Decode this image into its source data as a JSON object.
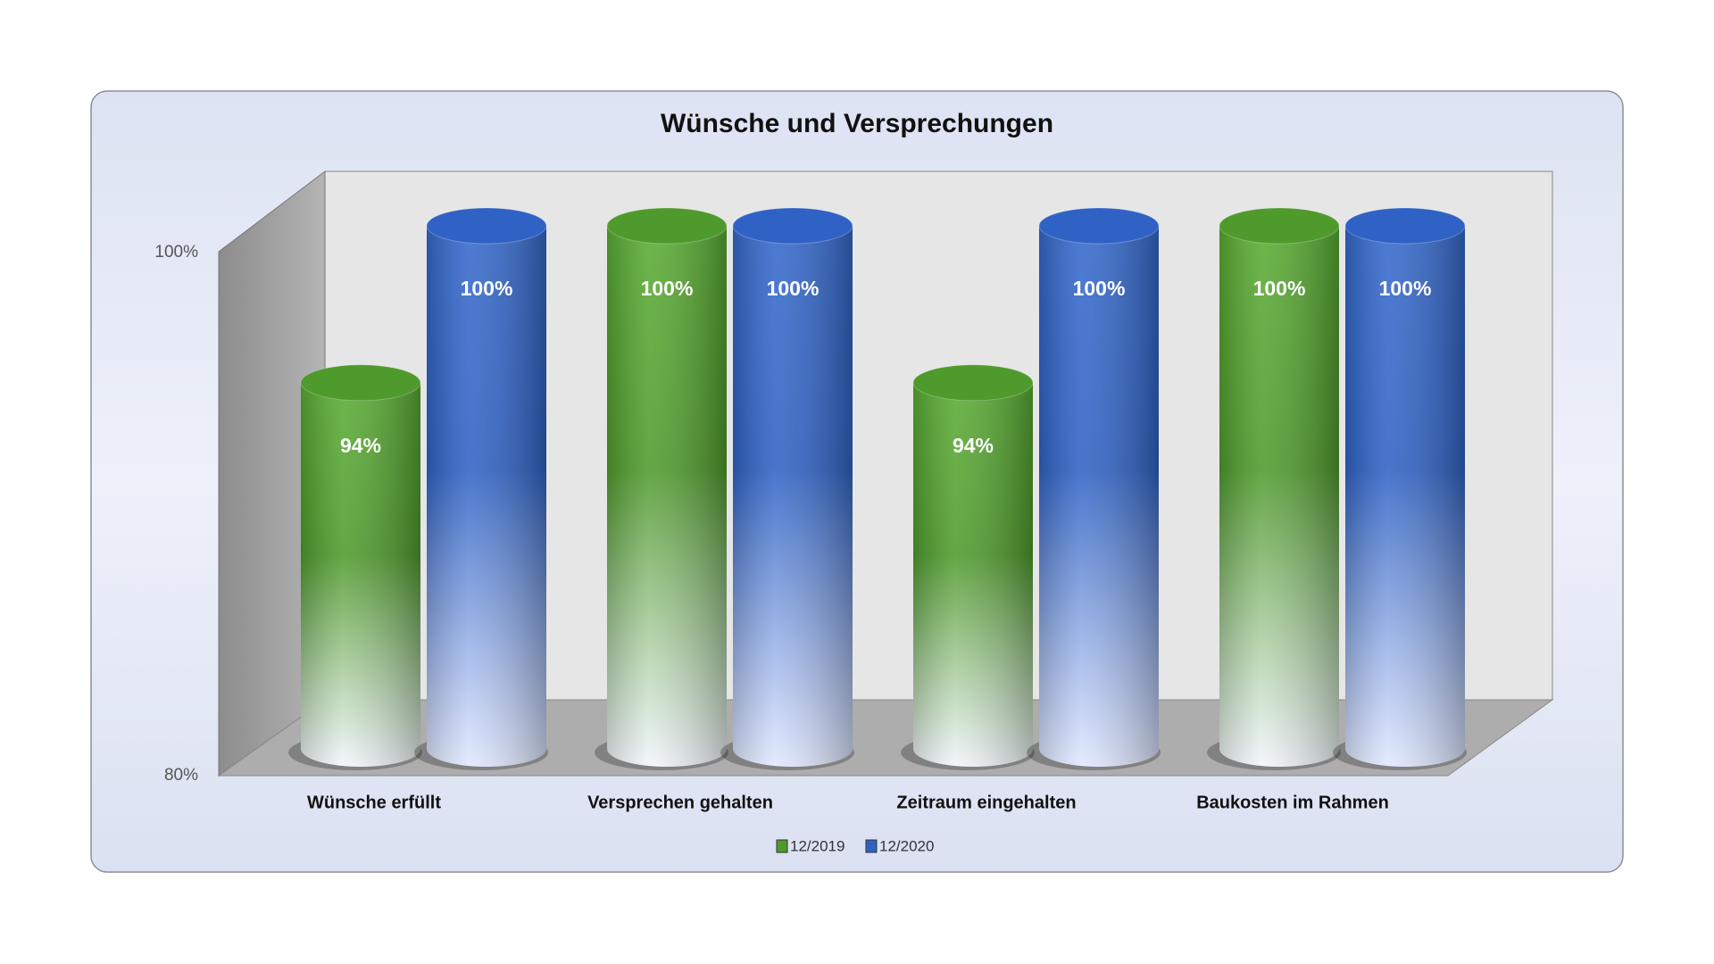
{
  "chart_data": {
    "type": "bar",
    "title": "Wünsche und Versprechungen",
    "categories": [
      "Wünsche erfüllt",
      "Versprechen gehalten",
      "Zeitraum eingehalten",
      "Baukosten im Rahmen"
    ],
    "series": [
      {
        "name": "12/2019",
        "color": "#4f9a2c",
        "values": [
          94,
          100,
          94,
          100
        ],
        "value_labels": [
          "94%",
          "100%",
          "94%",
          "100%"
        ]
      },
      {
        "name": "12/2020",
        "color": "#2f62c4",
        "values": [
          100,
          100,
          100,
          100
        ],
        "value_labels": [
          "100%",
          "100%",
          "100%",
          "100%"
        ]
      }
    ],
    "ylim": [
      80,
      100
    ],
    "yticks": [
      {
        "value": 80,
        "label": "80%"
      },
      {
        "value": 100,
        "label": "100%"
      }
    ],
    "legend": "bottom"
  }
}
